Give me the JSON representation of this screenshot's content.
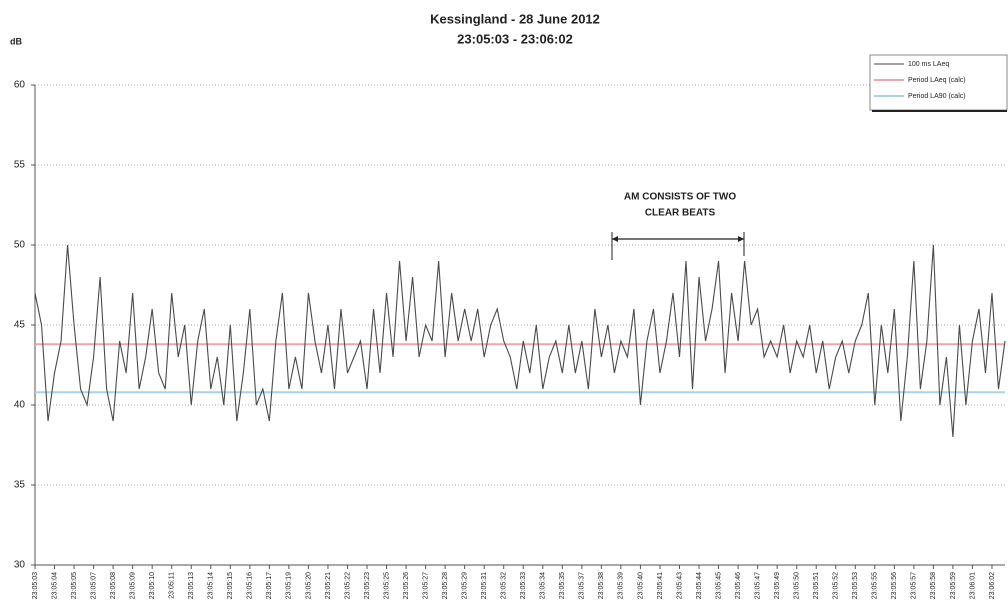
{
  "chart_data": {
    "type": "line",
    "title": "Kessingland  - 28 June 2012",
    "subtitle": "23:05:03 - 23:06:02",
    "y_label": "dB",
    "ylim": [
      30,
      60
    ],
    "yticks": [
      30,
      35,
      40,
      45,
      50,
      55,
      60
    ],
    "grid": true,
    "legend": "top-right",
    "annotation": [
      "AM CONSISTS OF TWO",
      "CLEAR BEATS"
    ],
    "categories": [
      "23:05:03",
      null,
      null,
      "23:05:04",
      null,
      null,
      "23:05:05",
      null,
      null,
      "23:05:07",
      null,
      null,
      "23:05:08",
      null,
      null,
      "23:05:09",
      null,
      null,
      "23:05:10",
      null,
      null,
      "23:05:11",
      null,
      null,
      "23:05:13",
      null,
      null,
      "23:05:14",
      null,
      null,
      "23:05:15",
      null,
      null,
      "23:05:16",
      null,
      null,
      "23:05:17",
      null,
      null,
      "23:05:19",
      null,
      null,
      "23:05:20",
      null,
      null,
      "23:05:21",
      null,
      null,
      "23:05:22",
      null,
      null,
      "23:05:23",
      null,
      null,
      "23:05:25",
      null,
      null,
      "23:05:26",
      null,
      null,
      "23:05:27",
      null,
      null,
      "23:05:28",
      null,
      null,
      "23:05:29",
      null,
      null,
      "23:05:31",
      null,
      null,
      "23:05:32",
      null,
      null,
      "23:05:33",
      null,
      null,
      "23:05:34",
      null,
      null,
      "23:05:35",
      null,
      null,
      "23:05:37",
      null,
      null,
      "23:05:38",
      null,
      null,
      "23:05:39",
      null,
      null,
      "23:05:40",
      null,
      null,
      "23:05:41",
      null,
      null,
      "23:05:43",
      null,
      null,
      "23:05:44",
      null,
      null,
      "23:05:45",
      null,
      null,
      "23:05:46",
      null,
      null,
      "23:05:47",
      null,
      null,
      "23:05:49",
      null,
      null,
      "23:05:50",
      null,
      null,
      "23:05:51",
      null,
      null,
      "23:05:52",
      null,
      null,
      "23:05:53",
      null,
      null,
      "23:05:55",
      null,
      null,
      "23:05:56",
      null,
      null,
      "23:05:57",
      null,
      null,
      "23:05:58",
      null,
      null,
      "23:05:59",
      null,
      null,
      "23:06:01",
      null,
      null,
      "23:06:02",
      null,
      null
    ],
    "series": [
      {
        "name": "100 ms LAeq",
        "color": "#4a4a4a",
        "values": [
          47,
          45,
          39,
          42,
          44,
          50,
          45,
          41,
          40,
          43,
          48,
          41,
          39,
          44,
          42,
          47,
          41,
          43,
          46,
          42,
          41,
          47,
          43,
          45,
          40,
          44,
          46,
          41,
          43,
          40,
          45,
          39,
          42,
          46,
          40,
          41,
          39,
          44,
          47,
          41,
          43,
          41,
          47,
          44,
          42,
          45,
          41,
          46,
          42,
          43,
          44,
          41,
          46,
          42,
          47,
          43,
          49,
          44,
          48,
          43,
          45,
          44,
          49,
          43,
          47,
          44,
          46,
          44,
          46,
          43,
          45,
          46,
          44,
          43,
          41,
          44,
          42,
          45,
          41,
          43,
          44,
          42,
          45,
          42,
          44,
          41,
          46,
          43,
          45,
          42,
          44,
          43,
          46,
          40,
          44,
          46,
          42,
          44,
          47,
          43,
          49,
          41,
          48,
          44,
          46,
          49,
          42,
          47,
          44,
          49,
          45,
          46,
          43,
          44,
          43,
          45,
          42,
          44,
          43,
          45,
          42,
          44,
          41,
          43,
          44,
          42,
          44,
          45,
          47,
          40,
          45,
          42,
          46,
          39,
          43,
          49,
          41,
          44,
          50,
          40,
          43,
          38,
          45,
          40,
          44,
          46,
          42,
          47,
          41,
          44
        ]
      },
      {
        "name": "Period LAeq (calc)",
        "color": "#f2a3ab",
        "value": 43.8
      },
      {
        "name": "Period LA90 (calc)",
        "color": "#a9d1ee",
        "value": 40.8
      }
    ]
  }
}
